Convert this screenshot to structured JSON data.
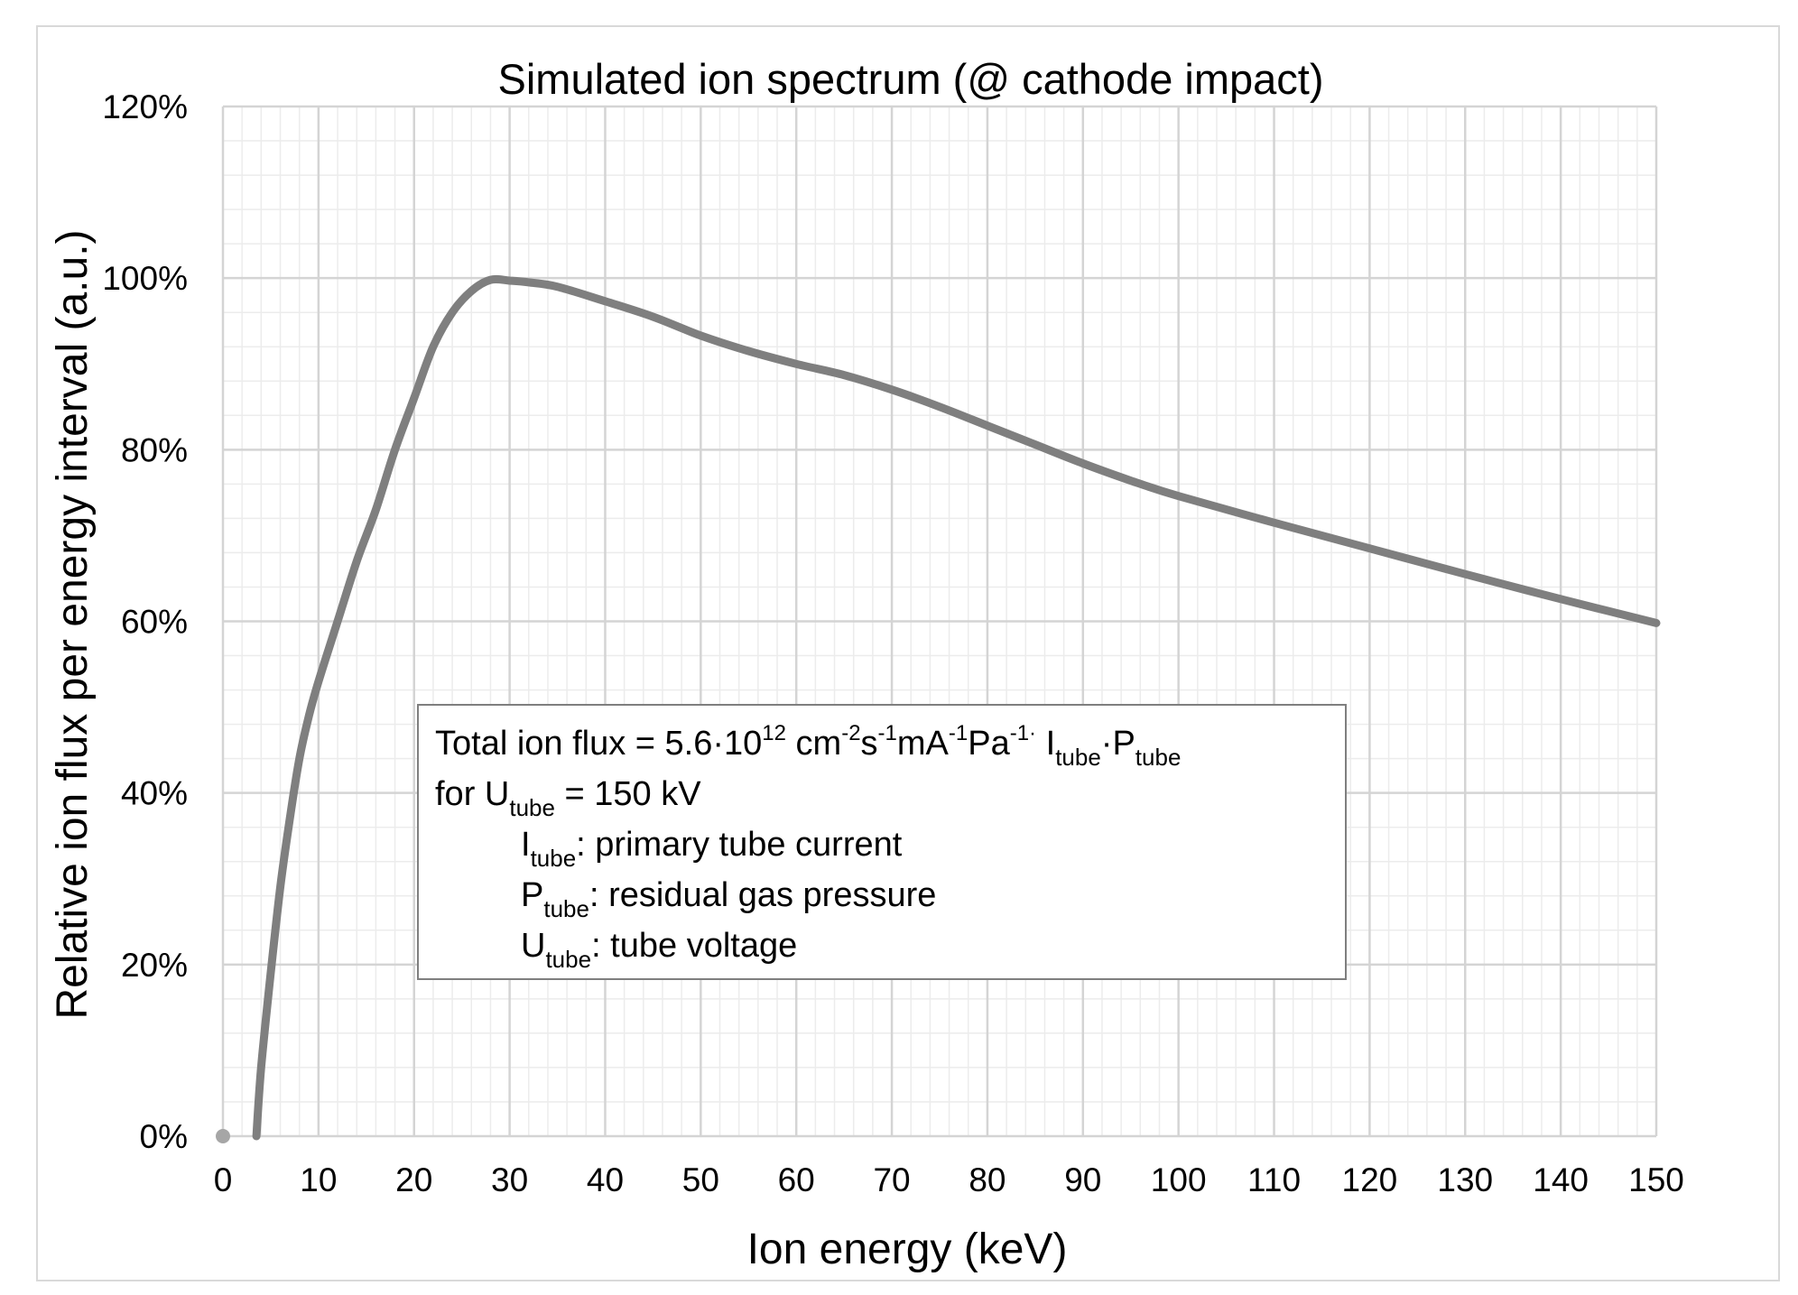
{
  "chart_data": {
    "type": "line",
    "title": "Simulated ion spectrum (@ cathode impact)",
    "xlabel": "Ion energy (keV)",
    "ylabel": "Relative ion flux per energy interval (a.u.)",
    "xlim": [
      0,
      150
    ],
    "ylim": [
      0,
      120
    ],
    "x_ticks": [
      "0",
      "10",
      "20",
      "30",
      "40",
      "50",
      "60",
      "70",
      "80",
      "90",
      "100",
      "110",
      "120",
      "130",
      "140",
      "150"
    ],
    "y_ticks": [
      "0%",
      "20%",
      "40%",
      "60%",
      "80%",
      "100%",
      "120%"
    ],
    "x_tick_values": [
      0,
      10,
      20,
      30,
      40,
      50,
      60,
      70,
      80,
      90,
      100,
      110,
      120,
      130,
      140,
      150
    ],
    "y_tick_values": [
      0,
      20,
      40,
      60,
      80,
      100,
      120
    ],
    "x_minor_step": 2,
    "y_minor_step": 4,
    "grid": true,
    "series": [
      {
        "name": "Simulated ion spectrum",
        "color": "#7f7f7f",
        "x": [
          3.5,
          4,
          5,
          6,
          7,
          8,
          9,
          10,
          12,
          14,
          16,
          18,
          20,
          22,
          24,
          26,
          28,
          30,
          32,
          35,
          40,
          45,
          50,
          55,
          60,
          65,
          70,
          75,
          80,
          85,
          90,
          95,
          100,
          110,
          120,
          130,
          140,
          150
        ],
        "y": [
          0,
          8,
          19,
          29,
          37,
          44,
          49,
          53,
          60,
          67,
          73,
          80,
          86,
          92,
          96,
          98.5,
          99.8,
          99.7,
          99.5,
          99,
          97.3,
          95.5,
          93.3,
          91.5,
          90,
          88.7,
          87,
          85,
          82.8,
          80.6,
          78.4,
          76.4,
          74.6,
          71.5,
          68.5,
          65.5,
          62.6,
          59.8
        ]
      }
    ],
    "marker_point": {
      "x": 0,
      "y": 0,
      "color": "#a6a6a6"
    }
  },
  "annotation": {
    "line1": {
      "prefix": "Total ion flux = 5.6·10",
      "exp1": "12",
      "unit1": " cm",
      "exp2": "-2",
      "unit2": "s",
      "exp3": "-1",
      "unit3": "mA",
      "exp4": "-1",
      "unit4": "Pa",
      "exp5": "-1·",
      "sym1": " I",
      "sub1": "tube",
      "mid": "·P",
      "sub2": "tube"
    },
    "line2": {
      "prefix": "for U",
      "sub": "tube",
      "suffix": " = 150 kV"
    },
    "line3": {
      "sym": "I",
      "sub": "tube",
      "text": ": primary tube current"
    },
    "line4": {
      "sym": "P",
      "sub": "tube",
      "text": ": residual gas pressure"
    },
    "line5": {
      "sym": "U",
      "sub": "tube",
      "text": ": tube voltage"
    }
  }
}
